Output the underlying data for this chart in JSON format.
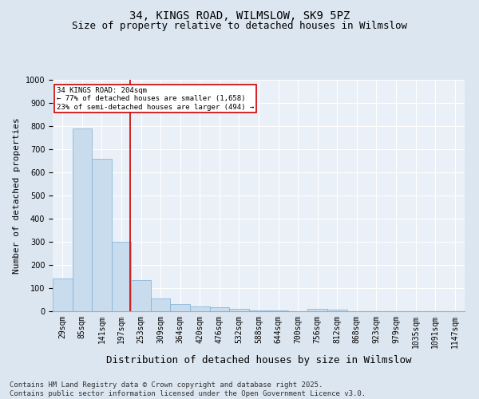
{
  "title": "34, KINGS ROAD, WILMSLOW, SK9 5PZ",
  "subtitle": "Size of property relative to detached houses in Wilmslow",
  "xlabel": "Distribution of detached houses by size in Wilmslow",
  "ylabel": "Number of detached properties",
  "bin_labels": [
    "29sqm",
    "85sqm",
    "141sqm",
    "197sqm",
    "253sqm",
    "309sqm",
    "364sqm",
    "420sqm",
    "476sqm",
    "532sqm",
    "588sqm",
    "644sqm",
    "700sqm",
    "756sqm",
    "812sqm",
    "868sqm",
    "923sqm",
    "979sqm",
    "1035sqm",
    "1091sqm",
    "1147sqm"
  ],
  "bar_values": [
    140,
    790,
    660,
    300,
    135,
    55,
    30,
    20,
    18,
    10,
    5,
    3,
    0,
    12,
    8,
    0,
    0,
    0,
    0,
    0,
    0
  ],
  "bar_color": "#c9dcee",
  "bar_edge_color": "#7bafd4",
  "vline_x_index": 3.45,
  "vline_color": "#cc0000",
  "annotation_text": "34 KINGS ROAD: 204sqm\n← 77% of detached houses are smaller (1,658)\n23% of semi-detached houses are larger (494) →",
  "annotation_box_color": "#ffffff",
  "annotation_box_edge": "#cc0000",
  "ylim": [
    0,
    1000
  ],
  "yticks": [
    0,
    100,
    200,
    300,
    400,
    500,
    600,
    700,
    800,
    900,
    1000
  ],
  "footer_line1": "Contains HM Land Registry data © Crown copyright and database right 2025.",
  "footer_line2": "Contains public sector information licensed under the Open Government Licence v3.0.",
  "bg_color": "#dce6f0",
  "plot_bg_color": "#eaf0f7",
  "title_fontsize": 10,
  "subtitle_fontsize": 9,
  "axis_label_fontsize": 8,
  "tick_fontsize": 7,
  "footer_fontsize": 6.5
}
